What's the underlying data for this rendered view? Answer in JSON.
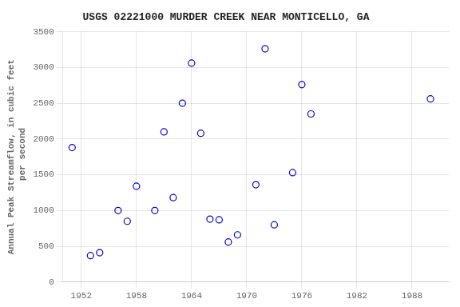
{
  "chart_data": {
    "type": "scatter",
    "title": "USGS 02221000 MURDER CREEK NEAR MONTICELLO, GA",
    "ylabel": [
      "Annual Peak Streamflow, in cubic feet",
      " per second"
    ],
    "x": [
      1951,
      1953,
      1954,
      1956,
      1957,
      1958,
      1960,
      1961,
      1962,
      1963,
      1964,
      1965,
      1966,
      1967,
      1968,
      1969,
      1971,
      1972,
      1973,
      1975,
      1976,
      1977,
      1990
    ],
    "values": [
      1880,
      370,
      410,
      1000,
      850,
      1340,
      1000,
      2100,
      1180,
      2500,
      3060,
      2080,
      880,
      870,
      560,
      660,
      1360,
      3260,
      800,
      1530,
      2760,
      2350,
      2560
    ],
    "color": "#0000cc",
    "marker": "circle",
    "xlim": [
      1950,
      1992
    ],
    "ylim": [
      0,
      3500
    ],
    "xticks": [
      1952,
      1958,
      1964,
      1970,
      1976,
      1982,
      1988
    ],
    "yticks": [
      0,
      500,
      1000,
      1500,
      2000,
      2500,
      3000,
      3500
    ],
    "grid": true
  }
}
